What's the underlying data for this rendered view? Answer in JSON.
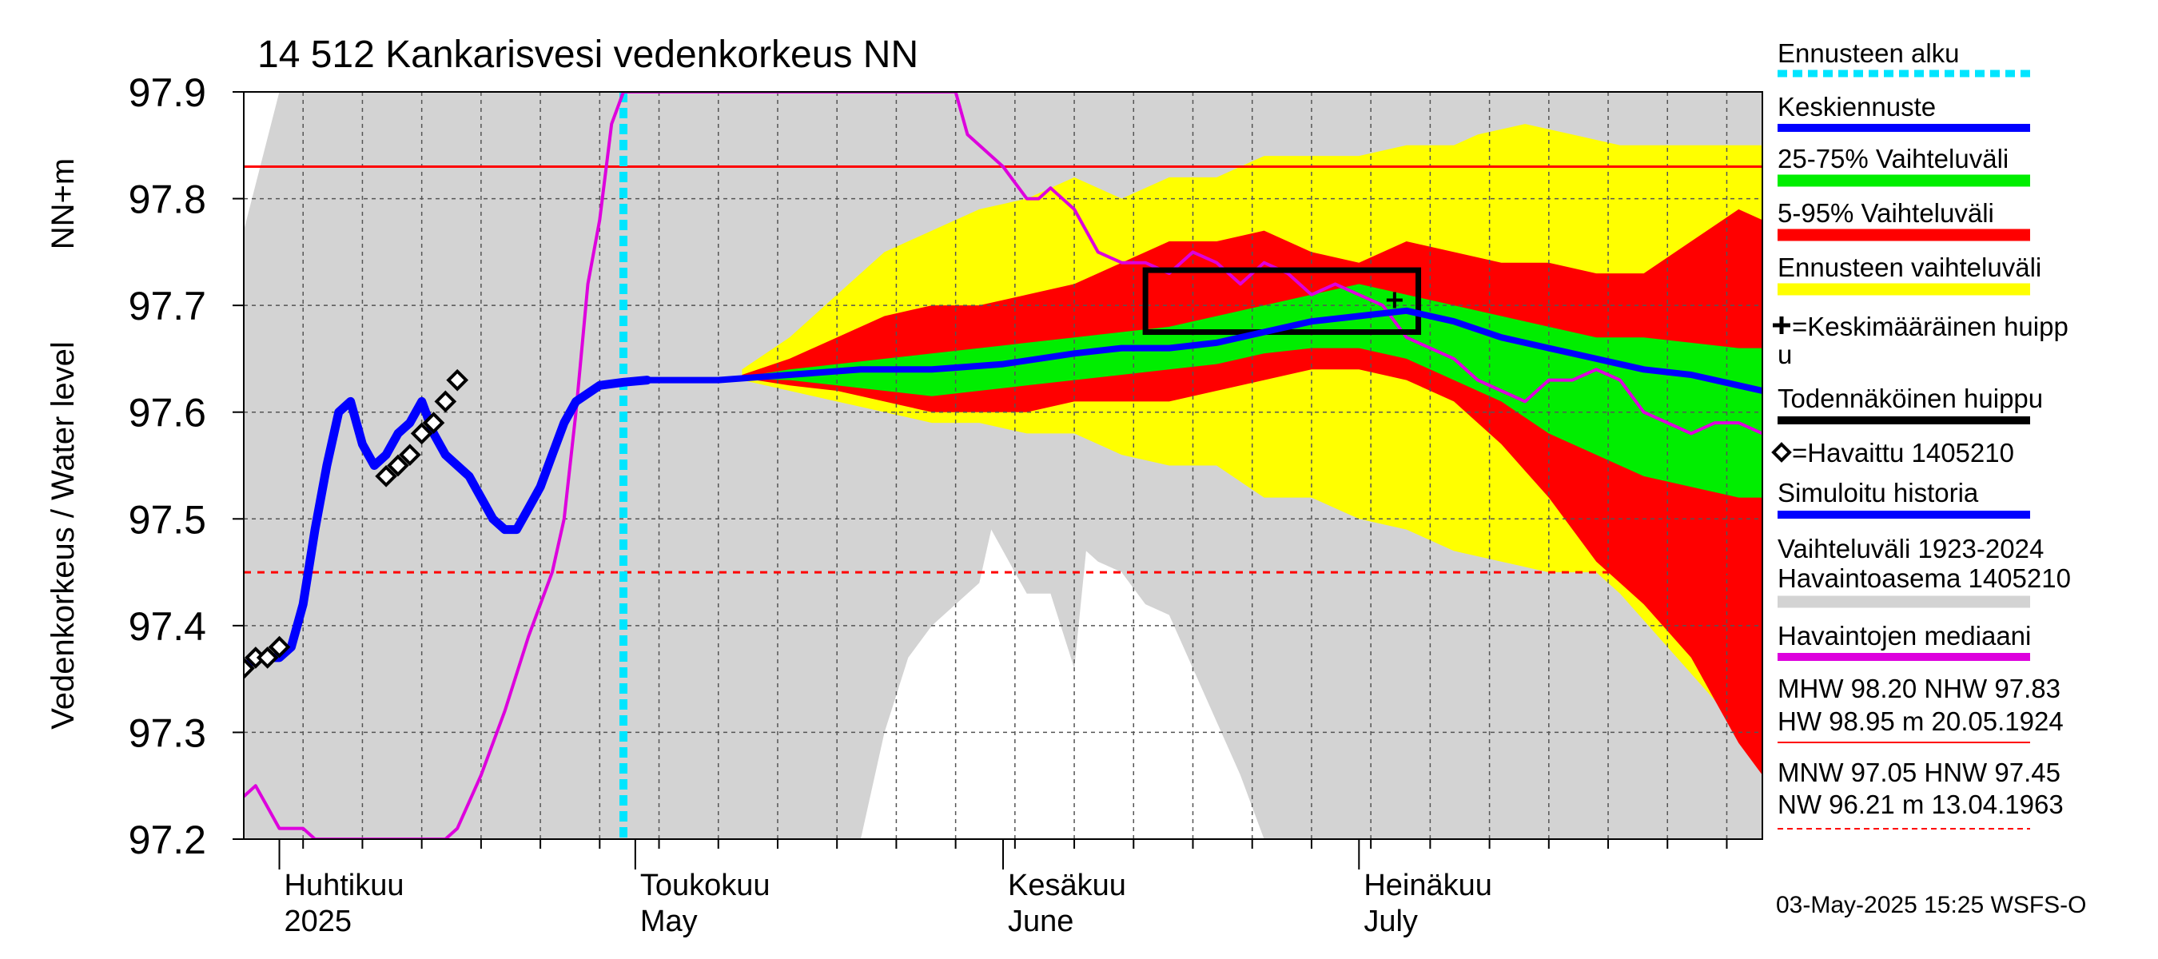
{
  "chart_data": {
    "type": "area",
    "title": "14 512 Kankarisvesi vedenkorkeus NN",
    "ylabel_main": "Vedenkorkeus / Water level",
    "ylabel_unit": "NN+m",
    "ylim": [
      97.2,
      97.9
    ],
    "yticks": [
      "97.2",
      "97.3",
      "97.4",
      "97.5",
      "97.6",
      "97.7",
      "97.8",
      "97.9"
    ],
    "x_range_days": [
      0,
      128
    ],
    "x_origin": "2025-03-29",
    "month_labels": [
      {
        "fi": "Huhtikuu",
        "en": "2025",
        "day": 3
      },
      {
        "fi": "Toukokuu",
        "en": "May",
        "day": 33
      },
      {
        "fi": "Kesäkuu",
        "en": "June",
        "day": 64
      },
      {
        "fi": "Heinäkuu",
        "en": "July",
        "day": 94
      }
    ],
    "forecast_start_day": 32,
    "reference_lines": {
      "NHW": 97.83,
      "HNW": 97.45
    },
    "historical_range_upper": [
      [
        0,
        97.77
      ],
      [
        3,
        97.9
      ],
      [
        128,
        97.9
      ]
    ],
    "historical_range_lower": [
      [
        0,
        97.2
      ],
      [
        52,
        97.2
      ],
      [
        54,
        97.3
      ],
      [
        56,
        97.37
      ],
      [
        58,
        97.4
      ],
      [
        60,
        97.42
      ],
      [
        62,
        97.44
      ],
      [
        63,
        97.49
      ],
      [
        64,
        97.47
      ],
      [
        65,
        97.45
      ],
      [
        66,
        97.43
      ],
      [
        68,
        97.43
      ],
      [
        70,
        97.36
      ],
      [
        71,
        97.47
      ],
      [
        72,
        97.46
      ],
      [
        74,
        97.45
      ],
      [
        76,
        97.42
      ],
      [
        78,
        97.41
      ],
      [
        80,
        97.36
      ],
      [
        82,
        97.31
      ],
      [
        84,
        97.26
      ],
      [
        86,
        97.2
      ],
      [
        128,
        97.2
      ]
    ],
    "forecast_yellow_upper": [
      [
        42,
        97.64
      ],
      [
        46,
        97.67
      ],
      [
        50,
        97.71
      ],
      [
        54,
        97.75
      ],
      [
        58,
        97.77
      ],
      [
        62,
        97.79
      ],
      [
        66,
        97.8
      ],
      [
        70,
        97.82
      ],
      [
        74,
        97.8
      ],
      [
        78,
        97.82
      ],
      [
        82,
        97.82
      ],
      [
        86,
        97.84
      ],
      [
        90,
        97.84
      ],
      [
        94,
        97.84
      ],
      [
        98,
        97.85
      ],
      [
        102,
        97.85
      ],
      [
        104,
        97.86
      ],
      [
        108,
        97.87
      ],
      [
        112,
        97.86
      ],
      [
        116,
        97.85
      ],
      [
        120,
        97.85
      ],
      [
        128,
        97.85
      ]
    ],
    "forecast_yellow_lower": [
      [
        42,
        97.63
      ],
      [
        46,
        97.62
      ],
      [
        50,
        97.61
      ],
      [
        54,
        97.6
      ],
      [
        58,
        97.59
      ],
      [
        62,
        97.59
      ],
      [
        66,
        97.58
      ],
      [
        70,
        97.58
      ],
      [
        74,
        97.56
      ],
      [
        78,
        97.55
      ],
      [
        82,
        97.55
      ],
      [
        86,
        97.52
      ],
      [
        90,
        97.52
      ],
      [
        94,
        97.5
      ],
      [
        98,
        97.49
      ],
      [
        102,
        97.47
      ],
      [
        106,
        97.46
      ],
      [
        110,
        97.45
      ],
      [
        114,
        97.45
      ],
      [
        116,
        97.43
      ],
      [
        120,
        97.38
      ],
      [
        124,
        97.33
      ],
      [
        128,
        97.28
      ]
    ],
    "forecast_red_upper": [
      [
        42,
        97.635
      ],
      [
        46,
        97.65
      ],
      [
        50,
        97.67
      ],
      [
        54,
        97.69
      ],
      [
        58,
        97.7
      ],
      [
        62,
        97.7
      ],
      [
        66,
        97.71
      ],
      [
        70,
        97.72
      ],
      [
        74,
        97.74
      ],
      [
        78,
        97.76
      ],
      [
        82,
        97.76
      ],
      [
        86,
        97.77
      ],
      [
        90,
        97.75
      ],
      [
        94,
        97.74
      ],
      [
        98,
        97.76
      ],
      [
        102,
        97.75
      ],
      [
        106,
        97.74
      ],
      [
        110,
        97.74
      ],
      [
        114,
        97.73
      ],
      [
        118,
        97.73
      ],
      [
        122,
        97.76
      ],
      [
        126,
        97.79
      ],
      [
        128,
        97.78
      ]
    ],
    "forecast_red_lower": [
      [
        42,
        97.632
      ],
      [
        46,
        97.625
      ],
      [
        50,
        97.62
      ],
      [
        54,
        97.61
      ],
      [
        58,
        97.6
      ],
      [
        62,
        97.6
      ],
      [
        66,
        97.6
      ],
      [
        70,
        97.61
      ],
      [
        74,
        97.61
      ],
      [
        78,
        97.61
      ],
      [
        82,
        97.62
      ],
      [
        86,
        97.63
      ],
      [
        90,
        97.64
      ],
      [
        94,
        97.64
      ],
      [
        98,
        97.63
      ],
      [
        102,
        97.61
      ],
      [
        106,
        97.57
      ],
      [
        110,
        97.52
      ],
      [
        114,
        97.46
      ],
      [
        118,
        97.42
      ],
      [
        122,
        97.37
      ],
      [
        126,
        97.29
      ],
      [
        128,
        97.26
      ]
    ],
    "forecast_green_upper": [
      [
        42,
        97.633
      ],
      [
        46,
        97.64
      ],
      [
        50,
        97.645
      ],
      [
        54,
        97.65
      ],
      [
        58,
        97.655
      ],
      [
        62,
        97.66
      ],
      [
        66,
        97.665
      ],
      [
        70,
        97.67
      ],
      [
        74,
        97.675
      ],
      [
        78,
        97.68
      ],
      [
        82,
        97.69
      ],
      [
        86,
        97.7
      ],
      [
        90,
        97.71
      ],
      [
        94,
        97.72
      ],
      [
        98,
        97.71
      ],
      [
        102,
        97.7
      ],
      [
        106,
        97.69
      ],
      [
        110,
        97.68
      ],
      [
        114,
        97.67
      ],
      [
        118,
        97.67
      ],
      [
        122,
        97.665
      ],
      [
        126,
        97.66
      ],
      [
        128,
        97.66
      ]
    ],
    "forecast_green_lower": [
      [
        42,
        97.631
      ],
      [
        46,
        97.63
      ],
      [
        50,
        97.625
      ],
      [
        54,
        97.62
      ],
      [
        58,
        97.615
      ],
      [
        62,
        97.62
      ],
      [
        66,
        97.625
      ],
      [
        70,
        97.63
      ],
      [
        74,
        97.635
      ],
      [
        78,
        97.64
      ],
      [
        82,
        97.645
      ],
      [
        86,
        97.655
      ],
      [
        90,
        97.66
      ],
      [
        94,
        97.66
      ],
      [
        98,
        97.65
      ],
      [
        102,
        97.63
      ],
      [
        106,
        97.61
      ],
      [
        110,
        97.58
      ],
      [
        114,
        97.56
      ],
      [
        118,
        97.54
      ],
      [
        122,
        97.53
      ],
      [
        126,
        97.52
      ],
      [
        128,
        97.52
      ]
    ],
    "median_observations": [
      [
        0,
        97.24
      ],
      [
        1,
        97.25
      ],
      [
        2,
        97.23
      ],
      [
        3,
        97.21
      ],
      [
        5,
        97.21
      ],
      [
        6,
        97.2
      ],
      [
        17,
        97.2
      ],
      [
        18,
        97.21
      ],
      [
        20,
        97.26
      ],
      [
        22,
        97.32
      ],
      [
        24,
        97.39
      ],
      [
        26,
        97.45
      ],
      [
        27,
        97.5
      ],
      [
        28,
        97.6
      ],
      [
        29,
        97.72
      ],
      [
        30,
        97.78
      ],
      [
        31,
        97.87
      ],
      [
        32,
        97.9
      ],
      [
        60,
        97.9
      ],
      [
        61,
        97.86
      ],
      [
        64,
        97.83
      ],
      [
        66,
        97.8
      ],
      [
        67,
        97.8
      ],
      [
        68,
        97.81
      ],
      [
        70,
        97.79
      ],
      [
        72,
        97.75
      ],
      [
        74,
        97.74
      ],
      [
        76,
        97.74
      ],
      [
        78,
        97.73
      ],
      [
        80,
        97.75
      ],
      [
        82,
        97.74
      ],
      [
        84,
        97.72
      ],
      [
        86,
        97.74
      ],
      [
        88,
        97.73
      ],
      [
        90,
        97.71
      ],
      [
        92,
        97.72
      ],
      [
        94,
        97.71
      ],
      [
        96,
        97.7
      ],
      [
        98,
        97.67
      ],
      [
        100,
        97.66
      ],
      [
        102,
        97.65
      ],
      [
        104,
        97.63
      ],
      [
        106,
        97.62
      ],
      [
        108,
        97.61
      ],
      [
        110,
        97.63
      ],
      [
        112,
        97.63
      ],
      [
        114,
        97.64
      ],
      [
        116,
        97.63
      ],
      [
        118,
        97.6
      ],
      [
        120,
        97.59
      ],
      [
        122,
        97.58
      ],
      [
        124,
        97.59
      ],
      [
        126,
        97.59
      ],
      [
        128,
        97.58
      ]
    ],
    "simulated_history": [
      [
        0,
        97.36
      ],
      [
        1,
        97.37
      ],
      [
        3,
        97.37
      ],
      [
        4,
        97.38
      ],
      [
        5,
        97.42
      ],
      [
        6,
        97.49
      ],
      [
        7,
        97.55
      ],
      [
        8,
        97.6
      ],
      [
        9,
        97.61
      ],
      [
        10,
        97.57
      ],
      [
        11,
        97.55
      ],
      [
        12,
        97.56
      ],
      [
        13,
        97.58
      ],
      [
        14,
        97.59
      ],
      [
        15,
        97.61
      ],
      [
        16,
        97.58
      ],
      [
        17,
        97.56
      ],
      [
        19,
        97.54
      ],
      [
        21,
        97.5
      ],
      [
        22,
        97.49
      ],
      [
        23,
        97.49
      ],
      [
        24,
        97.51
      ],
      [
        25,
        97.53
      ],
      [
        26,
        97.56
      ],
      [
        27,
        97.59
      ],
      [
        28,
        97.61
      ],
      [
        30,
        97.625
      ],
      [
        32,
        97.628
      ],
      [
        34,
        97.63
      ]
    ],
    "forecast_mean": [
      [
        34,
        97.63
      ],
      [
        40,
        97.63
      ],
      [
        46,
        97.635
      ],
      [
        52,
        97.64
      ],
      [
        58,
        97.64
      ],
      [
        64,
        97.645
      ],
      [
        70,
        97.655
      ],
      [
        74,
        97.66
      ],
      [
        78,
        97.66
      ],
      [
        82,
        97.665
      ],
      [
        86,
        97.675
      ],
      [
        90,
        97.685
      ],
      [
        94,
        97.69
      ],
      [
        98,
        97.695
      ],
      [
        102,
        97.685
      ],
      [
        106,
        97.67
      ],
      [
        110,
        97.66
      ],
      [
        114,
        97.65
      ],
      [
        118,
        97.64
      ],
      [
        122,
        97.635
      ],
      [
        126,
        97.625
      ],
      [
        128,
        97.62
      ]
    ],
    "observations": [
      [
        0,
        97.36
      ],
      [
        1,
        97.37
      ],
      [
        2,
        97.37
      ],
      [
        3,
        97.38
      ],
      [
        12,
        97.54
      ],
      [
        13,
        97.55
      ],
      [
        14,
        97.56
      ],
      [
        15,
        97.58
      ],
      [
        16,
        97.59
      ],
      [
        17,
        97.61
      ],
      [
        18,
        97.63
      ]
    ],
    "probable_peak_box": {
      "day_start": 76,
      "day_end": 99,
      "level_low": 97.675,
      "level_high": 97.733
    },
    "mean_peak": {
      "day": 97,
      "level": 97.705
    },
    "legend": [
      {
        "label": "Ennusteen alku",
        "color": "#00e5ff",
        "style": "dotted"
      },
      {
        "label": "Keskiennuste",
        "color": "#0000ff",
        "style": "line"
      },
      {
        "label": "25-75% Vaihteluväli",
        "color": "#00ee00",
        "style": "band"
      },
      {
        "label": "5-95% Vaihteluväli",
        "color": "#ff0000",
        "style": "band"
      },
      {
        "label": "Ennusteen vaihteluväli",
        "color": "#ffff00",
        "style": "band"
      },
      {
        "label": "=Keskimääräinen huipp",
        "label2": "u",
        "color": "#000000",
        "style": "plus"
      },
      {
        "label": "Todennäköinen huippu",
        "color": "#000000",
        "style": "line"
      },
      {
        "label": "=Havaittu 1405210",
        "color": "#000000",
        "style": "diamond"
      },
      {
        "label": "Simuloitu historia",
        "color": "#0000ff",
        "style": "line"
      },
      {
        "label": "Vaihteluväli 1923-2024",
        "label2": " Havaintoasema 1405210",
        "color": "#d3d3d3",
        "style": "band"
      },
      {
        "label": "Havaintojen mediaani",
        "color": "#dd00dd",
        "style": "line"
      },
      {
        "label": "MHW  98.20 NHW  97.83",
        "label2": "HW  98.95 m 20.05.1924",
        "color": "#ff0000",
        "style": "thin"
      },
      {
        "label": "MNW  97.05 HNW  97.45",
        "label2": "NW  96.21 m 13.04.1963",
        "color": "#ff0000",
        "style": "dashed"
      }
    ],
    "footer": "03-May-2025 15:25 WSFS-O"
  }
}
